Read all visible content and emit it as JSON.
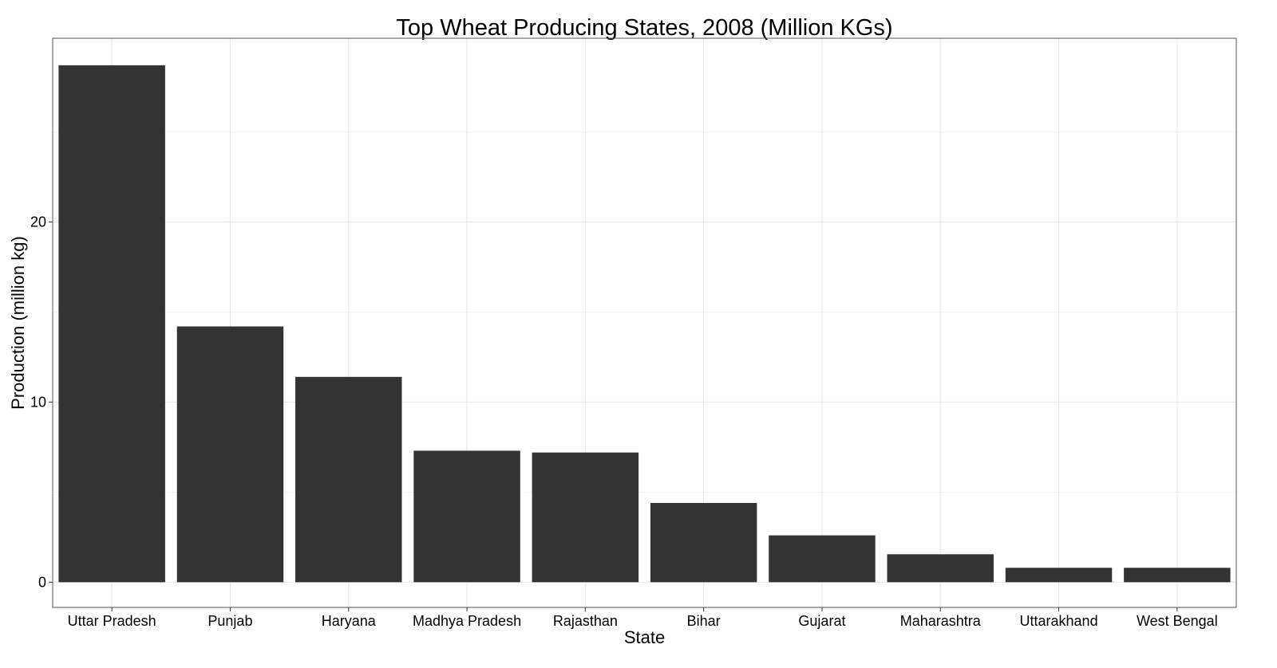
{
  "chart_data": {
    "type": "bar",
    "title": "Top Wheat Producing States, 2008 (Million KGs)",
    "xlabel": "State",
    "ylabel": "Production (million kg)",
    "categories": [
      "Uttar Pradesh",
      "Punjab",
      "Haryana",
      "Madhya Pradesh",
      "Rajasthan",
      "Bihar",
      "Gujarat",
      "Maharashtra",
      "Uttarakhand",
      "West Bengal"
    ],
    "values": [
      28.7,
      14.2,
      11.4,
      7.3,
      7.2,
      4.4,
      2.6,
      1.55,
      0.8,
      0.8
    ],
    "yticks": [
      0,
      10,
      20
    ],
    "ylim": [
      -1.4,
      30.2
    ],
    "grid": true,
    "legend": "none",
    "bar_color": "#333333"
  }
}
